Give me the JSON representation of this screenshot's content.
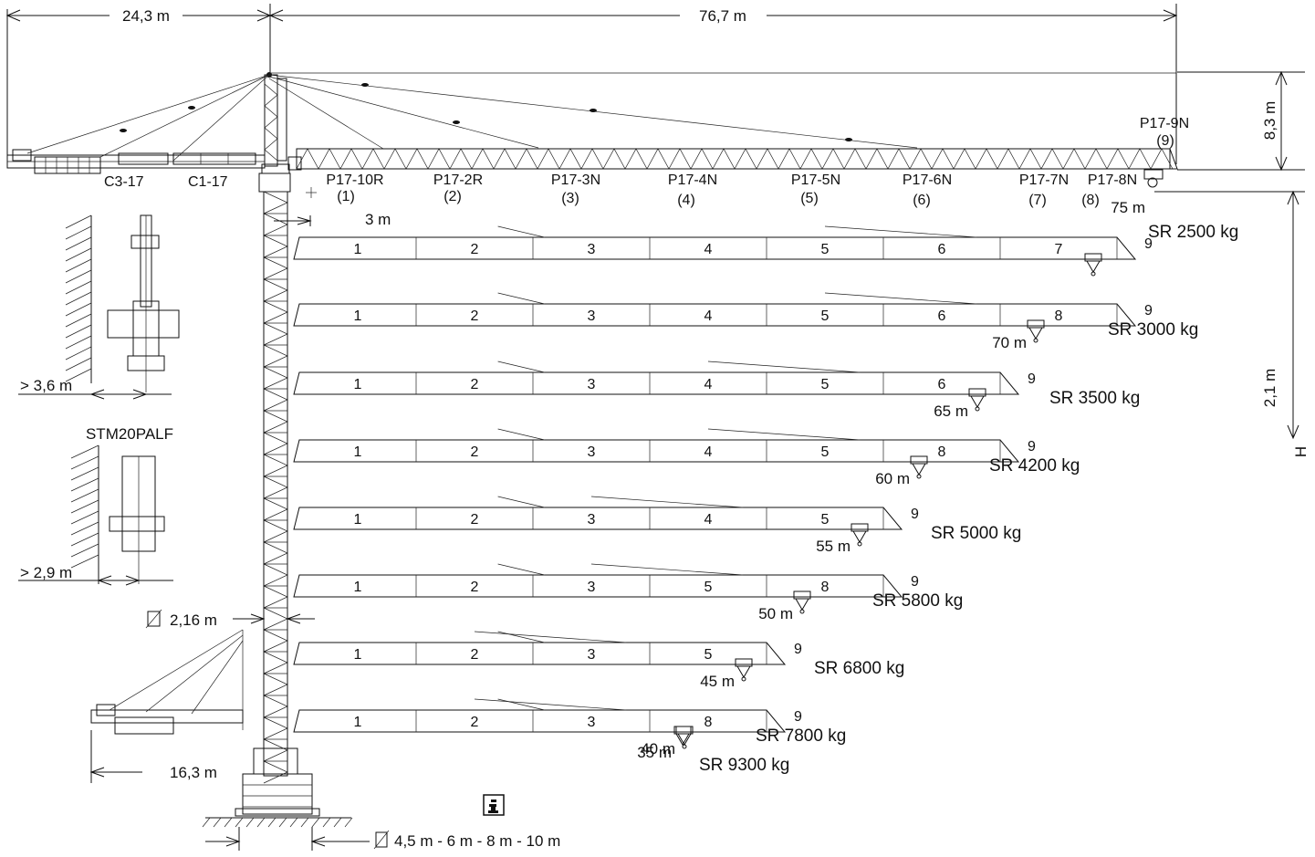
{
  "dimensions": {
    "counter_jib_length": "24,3 m",
    "jib_length": "76,7 m",
    "tower_top_height": "8,3 m",
    "hook_drop": "2,1 m",
    "height_label": "H",
    "inner_offset": "3 m",
    "mast_width": "2,16 m",
    "short_counter_jib": "16,3 m",
    "base_sizes": "4,5 m - 6 m - 8 m - 10 m",
    "clearance_1": "> 3,6 m",
    "clearance_2": "> 2,9 m"
  },
  "model_label": "STM20PALF",
  "counter_jib_labels": [
    "C3-17",
    "C1-17"
  ],
  "jib_sections": [
    {
      "name": "P17-10R",
      "num": "(1)"
    },
    {
      "name": "P17-2R",
      "num": "(2)"
    },
    {
      "name": "P17-3N",
      "num": "(3)"
    },
    {
      "name": "P17-4N",
      "num": "(4)"
    },
    {
      "name": "P17-5N",
      "num": "(5)"
    },
    {
      "name": "P17-6N",
      "num": "(6)"
    },
    {
      "name": "P17-7N",
      "num": "(7)"
    },
    {
      "name": "P17-8N",
      "num": "(8)"
    },
    {
      "name": "P17-9N",
      "num": "(9)"
    }
  ],
  "configurations": [
    {
      "radius": "75 m",
      "segments": [
        "1",
        "2",
        "3",
        "4",
        "5",
        "6",
        "7"
      ],
      "tip": "9",
      "sr": "SR",
      "load": "2500 kg"
    },
    {
      "radius": "70 m",
      "segments": [
        "1",
        "2",
        "3",
        "4",
        "5",
        "6",
        "8"
      ],
      "tip": "9",
      "sr": "SR",
      "load": "3000 kg"
    },
    {
      "radius": "65 m",
      "segments": [
        "1",
        "2",
        "3",
        "4",
        "5",
        "6"
      ],
      "tip": "9",
      "sr": "SR",
      "load": "3500 kg"
    },
    {
      "radius": "60 m",
      "segments": [
        "1",
        "2",
        "3",
        "4",
        "5",
        "8"
      ],
      "tip": "9",
      "sr": "SR",
      "load": "4200 kg"
    },
    {
      "radius": "55 m",
      "segments": [
        "1",
        "2",
        "3",
        "4",
        "5"
      ],
      "tip": "9",
      "sr": "SR",
      "load": "5000 kg"
    },
    {
      "radius": "50 m",
      "segments": [
        "1",
        "2",
        "3",
        "5",
        "8"
      ],
      "tip": "9",
      "sr": "SR",
      "load": "5800 kg"
    },
    {
      "radius": "45 m",
      "segments": [
        "1",
        "2",
        "3",
        "5"
      ],
      "tip": "9",
      "sr": "SR",
      "load": "6800 kg"
    },
    {
      "radius": "40 m",
      "segments": [
        "1",
        "2",
        "3",
        "8"
      ],
      "tip": "9",
      "sr": "SR",
      "load": "7800 kg"
    },
    {
      "radius": "35 m",
      "segments": [],
      "tip": "",
      "sr": "SR",
      "load": "9300 kg"
    }
  ],
  "info_icon": "info-icon"
}
